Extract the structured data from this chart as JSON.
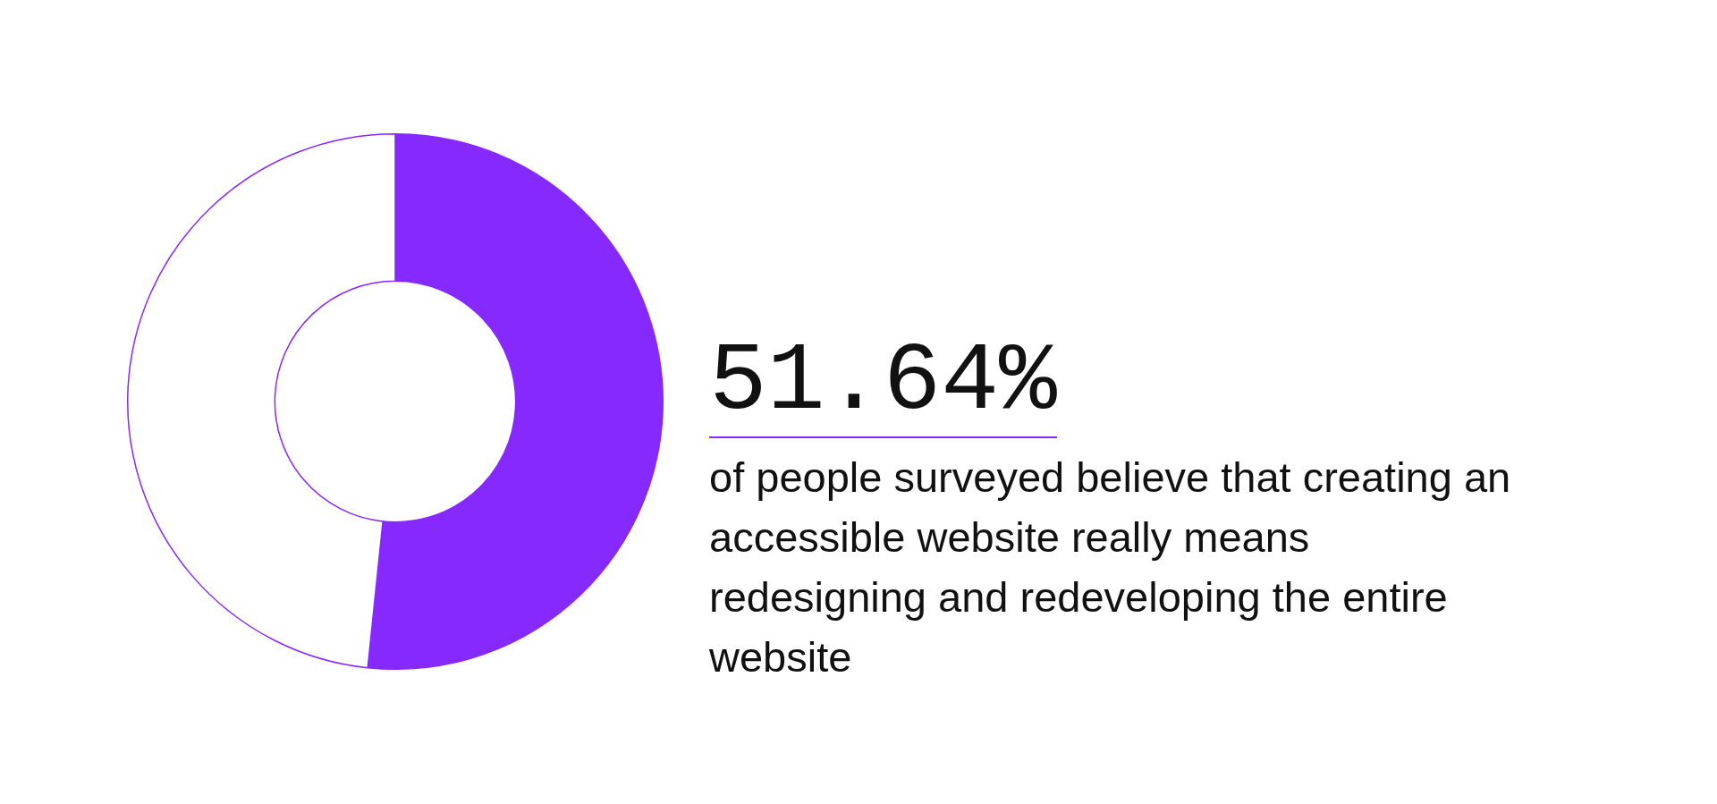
{
  "chart_data": {
    "type": "donut",
    "categories": [
      null,
      null
    ],
    "values": [
      51.64,
      48.36
    ],
    "colors": [
      "#8629ff",
      "#ffffff"
    ],
    "value_labels": [
      "51.64%",
      null
    ],
    "annotations": [
      "of people surveyed believe that creating an accessible website really means redesigning and redeveloping the entire website"
    ]
  }
}
